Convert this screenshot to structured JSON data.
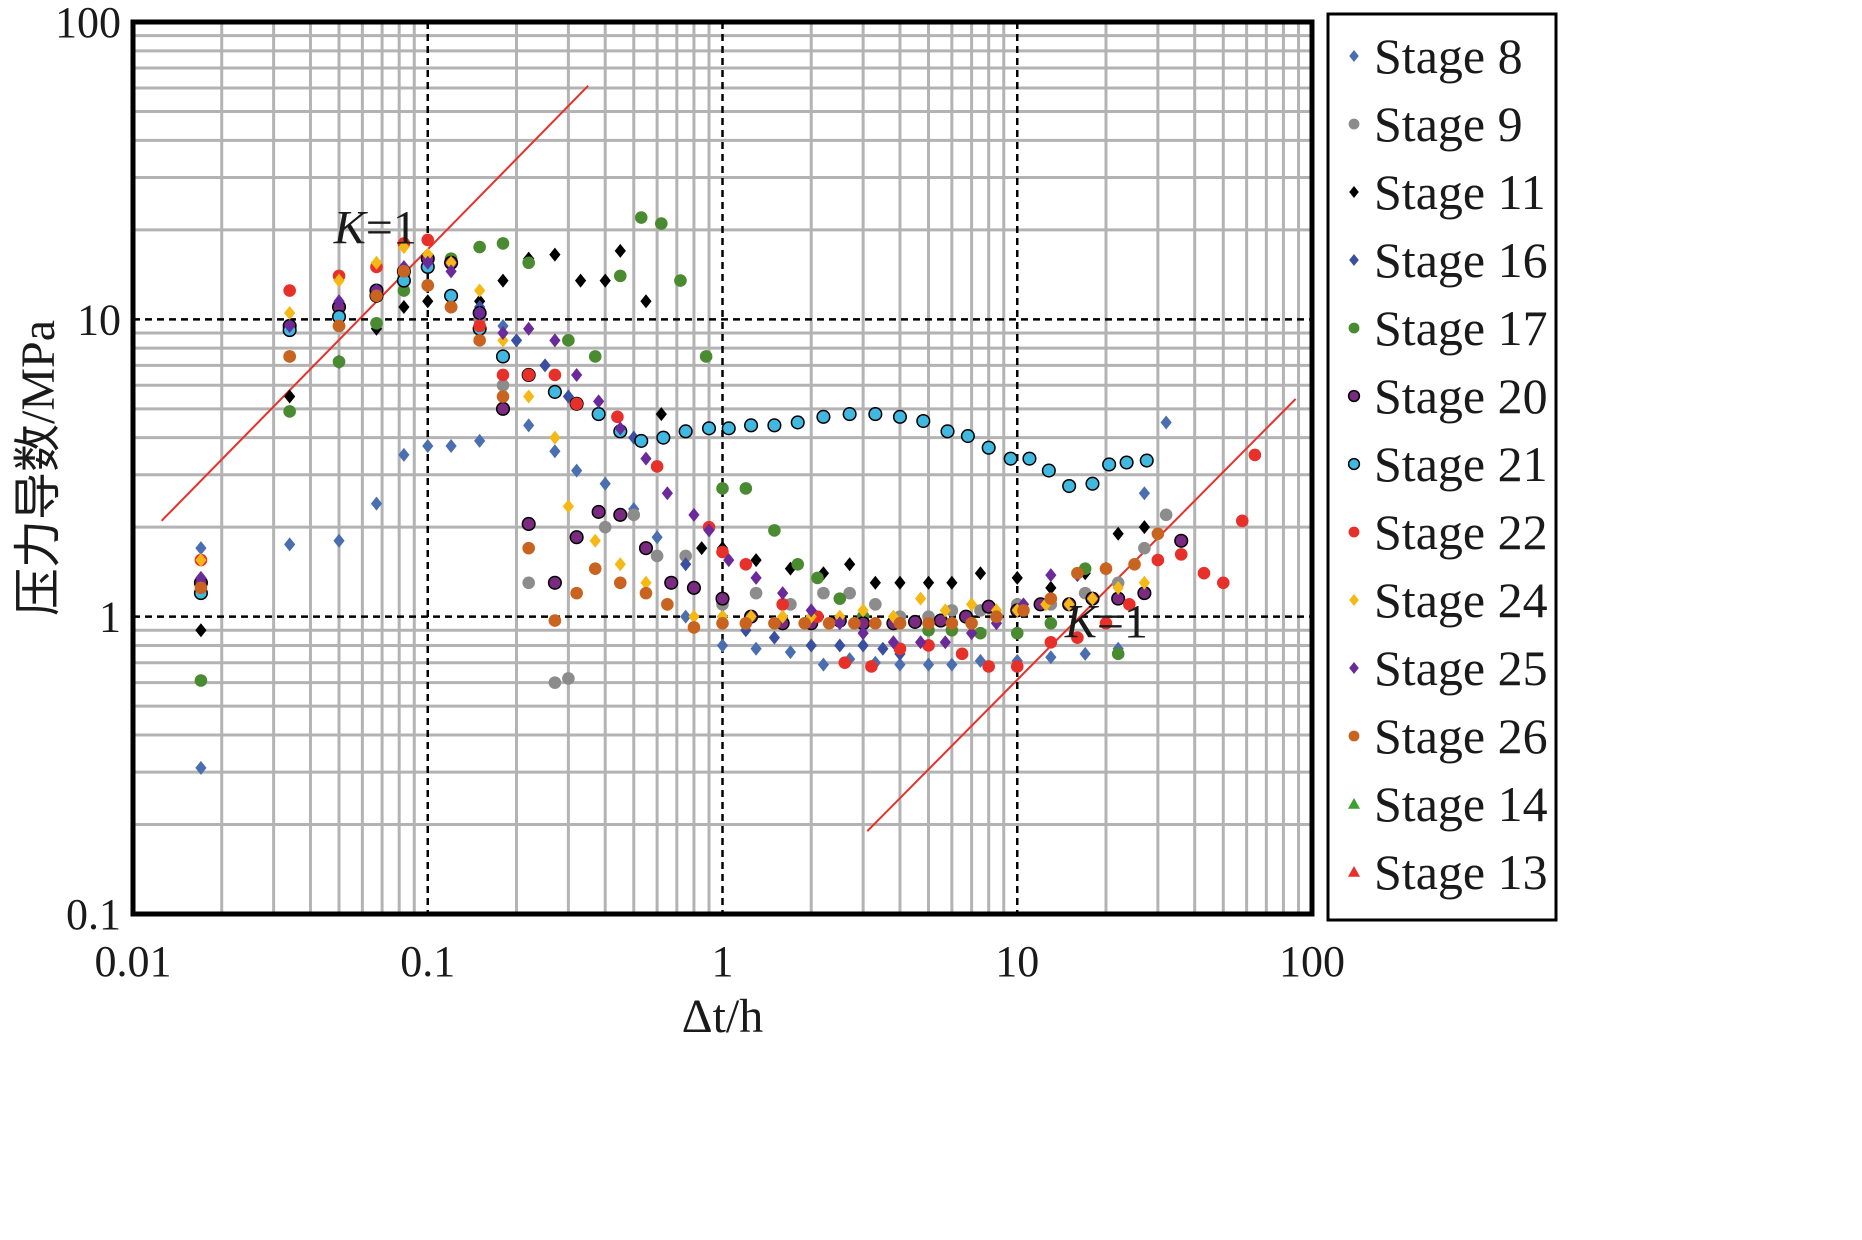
{
  "chart_data": {
    "type": "scatter",
    "xscale": "log",
    "yscale": "log",
    "xlim": [
      0.01,
      100
    ],
    "ylim": [
      0.1,
      100
    ],
    "xlabel": "Δt/h",
    "ylabel": "压力导数/MPa",
    "x_ticks": [
      "0.01",
      "0.1",
      "1",
      "10",
      "100"
    ],
    "y_ticks": [
      "0.1",
      "1",
      "10",
      "100"
    ],
    "grid": true,
    "legend_position": "right",
    "series": [
      {
        "name": "Stage 8",
        "color": "#4a6fb0",
        "marker": "diamond",
        "x": [
          0.017,
          0.017,
          0.034,
          0.05,
          0.067,
          0.083,
          0.1,
          0.12,
          0.15,
          0.18,
          0.22,
          0.27,
          0.32,
          0.4,
          0.5,
          0.6,
          0.75,
          1.0,
          1.3,
          1.7,
          2.2,
          2.7,
          3.3,
          4.0,
          5.0,
          6.0,
          7.5,
          10.0,
          13.0,
          17.0,
          22.0,
          27.0,
          32.0
        ],
        "y": [
          0.31,
          1.7,
          1.75,
          1.8,
          2.4,
          3.5,
          3.75,
          3.75,
          3.9,
          9.5,
          4.4,
          3.6,
          3.1,
          2.8,
          2.3,
          1.85,
          1.0,
          0.8,
          0.78,
          0.76,
          0.69,
          0.72,
          0.7,
          0.69,
          0.69,
          0.69,
          0.71,
          0.71,
          0.73,
          0.75,
          0.78,
          2.6,
          4.5
        ]
      },
      {
        "name": "Stage 9",
        "color": "#8c8c8c",
        "marker": "circle",
        "x": [
          0.017,
          0.034,
          0.05,
          0.067,
          0.083,
          0.1,
          0.12,
          0.15,
          0.18,
          0.22,
          0.27,
          0.3,
          0.4,
          0.5,
          0.6,
          0.75,
          1.0,
          1.3,
          1.7,
          2.2,
          2.7,
          3.3,
          4.0,
          5.0,
          6.0,
          7.5,
          10.0,
          13.0,
          17.0,
          22.0,
          27.0,
          32.0
        ],
        "y": [
          1.2,
          7.5,
          9.5,
          12.0,
          14.0,
          13.0,
          11.0,
          10.0,
          6.0,
          1.3,
          0.6,
          0.62,
          2.0,
          2.2,
          1.6,
          1.6,
          1.1,
          1.2,
          1.1,
          1.2,
          1.2,
          1.1,
          1.0,
          1.0,
          1.05,
          1.05,
          1.1,
          1.1,
          1.2,
          1.3,
          1.7,
          2.2
        ]
      },
      {
        "name": "Stage 11",
        "color": "#000000",
        "marker": "diamond",
        "x": [
          0.017,
          0.034,
          0.05,
          0.067,
          0.083,
          0.1,
          0.12,
          0.15,
          0.18,
          0.22,
          0.27,
          0.33,
          0.4,
          0.45,
          0.55,
          0.62,
          0.85,
          1.0,
          1.3,
          1.7,
          2.2,
          2.7,
          3.3,
          4.0,
          5.0,
          6.0,
          7.5,
          10.0,
          13.0,
          17.0,
          22.0,
          27.0
        ],
        "y": [
          0.9,
          5.5,
          7.2,
          9.3,
          11.0,
          11.5,
          12.0,
          11.5,
          13.5,
          16.0,
          16.5,
          13.5,
          13.5,
          17.0,
          11.5,
          4.8,
          1.7,
          1.7,
          1.55,
          1.45,
          1.4,
          1.5,
          1.3,
          1.3,
          1.3,
          1.3,
          1.4,
          1.35,
          1.25,
          1.4,
          1.9,
          2.0
        ]
      },
      {
        "name": "Stage 16",
        "color": "#3a4fa0",
        "marker": "diamond",
        "x": [
          0.05,
          0.067,
          0.083,
          0.1,
          0.15,
          0.2,
          0.25,
          0.3,
          0.5,
          0.75,
          1.0,
          1.2,
          1.5,
          2.0,
          2.5,
          3.0,
          3.5,
          4.0
        ],
        "y": [
          10.0,
          12.0,
          14.0,
          15.0,
          11.0,
          8.5,
          7.0,
          5.5,
          4.0,
          1.5,
          1.0,
          0.9,
          0.85,
          0.8,
          0.8,
          0.8,
          0.78,
          0.75
        ]
      },
      {
        "name": "Stage 17",
        "color": "#4a8a30",
        "marker": "circle",
        "x": [
          0.017,
          0.034,
          0.05,
          0.067,
          0.083,
          0.1,
          0.12,
          0.15,
          0.18,
          0.22,
          0.3,
          0.37,
          0.45,
          0.53,
          0.62,
          0.72,
          0.88,
          1.0,
          1.2,
          1.5,
          1.8,
          2.1,
          2.5,
          3.0,
          4.0,
          5.0,
          6.0,
          7.5,
          10.0,
          13.0,
          17.0,
          22.0
        ],
        "y": [
          0.61,
          4.9,
          7.2,
          9.7,
          12.5,
          15.0,
          16.0,
          17.5,
          18.0,
          15.5,
          8.5,
          7.5,
          14.0,
          22.0,
          21.0,
          13.5,
          7.5,
          2.7,
          2.7,
          1.95,
          1.5,
          1.35,
          1.15,
          1.0,
          0.95,
          0.9,
          0.9,
          0.88,
          0.88,
          0.95,
          1.45,
          0.75
        ]
      },
      {
        "name": "Stage 20",
        "color": "#7a2a80",
        "marker": "circle",
        "x": [
          0.017,
          0.034,
          0.05,
          0.067,
          0.083,
          0.1,
          0.12,
          0.15,
          0.18,
          0.22,
          0.27,
          0.32,
          0.38,
          0.45,
          0.55,
          0.67,
          0.8,
          1.0,
          1.25,
          1.6,
          2.0,
          2.5,
          3.0,
          3.8,
          4.5,
          5.5,
          6.7,
          8.0,
          10.0,
          12.0,
          15.0,
          18.0,
          22.0,
          27.0,
          36.0
        ],
        "y": [
          1.3,
          9.5,
          11.0,
          12.5,
          14.5,
          16.0,
          15.5,
          10.5,
          5.0,
          2.05,
          1.3,
          1.85,
          2.25,
          2.2,
          1.7,
          1.3,
          1.25,
          1.15,
          1.0,
          0.95,
          0.95,
          0.97,
          0.95,
          0.95,
          0.96,
          0.97,
          1.0,
          1.08,
          1.05,
          1.1,
          1.1,
          1.15,
          1.15,
          1.2,
          1.8
        ]
      },
      {
        "name": "Stage 21",
        "color": "#40b8e0",
        "marker": "circle",
        "x": [
          0.017,
          0.034,
          0.05,
          0.067,
          0.083,
          0.1,
          0.12,
          0.15,
          0.18,
          0.22,
          0.27,
          0.32,
          0.38,
          0.45,
          0.53,
          0.63,
          0.75,
          0.9,
          1.05,
          1.25,
          1.5,
          1.8,
          2.2,
          2.7,
          3.3,
          4.0,
          4.8,
          5.8,
          6.8,
          8.0,
          9.5,
          11.0,
          12.8,
          15.0,
          18.0,
          20.5,
          23.5,
          27.5
        ],
        "y": [
          1.2,
          9.2,
          10.2,
          12.0,
          13.5,
          15.0,
          12.0,
          9.3,
          7.5,
          6.5,
          5.7,
          5.2,
          4.8,
          4.2,
          3.9,
          4.0,
          4.2,
          4.3,
          4.3,
          4.4,
          4.4,
          4.5,
          4.7,
          4.8,
          4.8,
          4.7,
          4.55,
          4.2,
          4.05,
          3.7,
          3.4,
          3.4,
          3.1,
          2.75,
          2.8,
          3.25,
          3.3,
          3.35
        ]
      },
      {
        "name": "Stage 22",
        "color": "#e8302a",
        "marker": "circle",
        "x": [
          0.017,
          0.034,
          0.05,
          0.067,
          0.083,
          0.1,
          0.12,
          0.15,
          0.18,
          0.22,
          0.27,
          0.32,
          0.44,
          0.6,
          0.9,
          1.0,
          1.2,
          1.6,
          2.1,
          2.6,
          3.2,
          4.0,
          5.0,
          6.5,
          8.0,
          10.0,
          13.0,
          16.0,
          20.0,
          24.0,
          30.0,
          36.0,
          43.0,
          50.0,
          58.0,
          64.0
        ],
        "y": [
          1.55,
          12.5,
          14.0,
          15.0,
          18.0,
          18.5,
          11.0,
          9.5,
          6.5,
          6.5,
          6.5,
          5.2,
          4.7,
          3.2,
          2.0,
          1.65,
          1.5,
          1.1,
          1.0,
          0.7,
          0.68,
          0.78,
          0.8,
          0.75,
          0.68,
          0.68,
          0.82,
          0.85,
          0.95,
          1.1,
          1.55,
          1.62,
          1.4,
          1.3,
          2.1,
          3.5
        ]
      },
      {
        "name": "Stage 24",
        "color": "#f5b814",
        "marker": "diamond",
        "x": [
          0.017,
          0.034,
          0.05,
          0.067,
          0.083,
          0.1,
          0.12,
          0.15,
          0.18,
          0.22,
          0.27,
          0.3,
          0.37,
          0.45,
          0.55,
          0.65,
          0.8,
          1.0,
          1.25,
          1.6,
          2.0,
          2.5,
          3.0,
          3.8,
          4.7,
          5.7,
          7.0,
          8.5,
          10.0,
          12.5,
          15.0,
          18.0,
          22.0,
          27.0
        ],
        "y": [
          1.55,
          10.5,
          13.5,
          15.5,
          17.5,
          16.5,
          15.5,
          12.5,
          8.5,
          5.5,
          4.0,
          2.35,
          1.8,
          1.5,
          1.3,
          1.1,
          1.0,
          1.0,
          1.0,
          1.0,
          1.0,
          1.0,
          1.05,
          1.0,
          1.15,
          1.05,
          1.1,
          1.05,
          1.05,
          1.1,
          1.1,
          1.15,
          1.25,
          1.3
        ]
      },
      {
        "name": "Stage 25",
        "color": "#6a2a9a",
        "marker": "diamond",
        "x": [
          0.017,
          0.034,
          0.05,
          0.067,
          0.083,
          0.1,
          0.12,
          0.15,
          0.18,
          0.22,
          0.27,
          0.32,
          0.38,
          0.45,
          0.55,
          0.65,
          0.8,
          0.9,
          1.05,
          1.3,
          1.6,
          2.0,
          2.5,
          3.0,
          3.8,
          4.7,
          5.7,
          7.0,
          8.5,
          10.5,
          13.0,
          16.0,
          20.0
        ],
        "y": [
          1.35,
          9.5,
          11.5,
          12.5,
          15.0,
          15.5,
          14.5,
          10.5,
          9.0,
          9.3,
          8.5,
          6.5,
          5.3,
          4.3,
          3.4,
          2.6,
          2.2,
          1.95,
          1.55,
          1.35,
          1.2,
          1.05,
          0.95,
          0.88,
          0.82,
          0.82,
          0.82,
          0.88,
          0.95,
          1.1,
          1.38,
          1.38,
          1.45
        ]
      },
      {
        "name": "Stage 26",
        "color": "#c86420",
        "marker": "circle",
        "x": [
          0.017,
          0.034,
          0.05,
          0.067,
          0.083,
          0.1,
          0.12,
          0.15,
          0.18,
          0.22,
          0.27,
          0.32,
          0.37,
          0.45,
          0.55,
          0.65,
          0.8,
          1.0,
          1.2,
          1.5,
          1.9,
          2.3,
          2.8,
          3.3,
          4.0,
          5.0,
          6.0,
          7.0,
          8.5,
          10.5,
          13.0,
          16.0,
          20.0,
          25.0,
          30.0
        ],
        "y": [
          1.25,
          7.5,
          9.5,
          12.0,
          14.5,
          13.0,
          11.0,
          8.5,
          5.5,
          1.7,
          0.97,
          1.2,
          1.45,
          1.3,
          1.2,
          1.1,
          0.92,
          0.95,
          0.95,
          0.95,
          0.95,
          0.95,
          0.95,
          0.95,
          0.95,
          0.95,
          0.95,
          0.95,
          1.0,
          1.05,
          1.15,
          1.4,
          1.45,
          1.5,
          1.9
        ]
      },
      {
        "name": "Stage 14",
        "color": "#3aa030",
        "marker": "triangle",
        "x": [],
        "y": []
      },
      {
        "name": "Stage 13",
        "color": "#e8302a",
        "marker": "triangle",
        "x": [],
        "y": []
      }
    ],
    "reference_lines": [
      {
        "label": "K=1",
        "color": "#e8302a",
        "x": [
          0.0125,
          0.35
        ],
        "y": [
          2.1,
          61.0
        ]
      },
      {
        "label": "K=1",
        "color": "#e8302a",
        "x": [
          3.1,
          88.0
        ],
        "y": [
          0.19,
          5.4
        ]
      }
    ],
    "annotations": [
      {
        "k": "K",
        "rest": "=1",
        "x": 0.048,
        "y": 18.0
      },
      {
        "k": "K",
        "rest": "=1",
        "x": 14.5,
        "y": 0.85
      }
    ]
  }
}
